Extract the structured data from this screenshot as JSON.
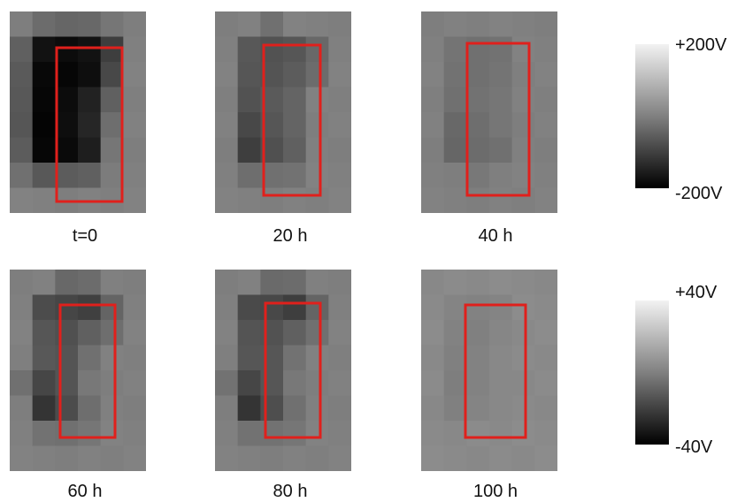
{
  "figure": {
    "time_labels": [
      "t=0",
      "20 h",
      "40 h",
      "60 h",
      "80 h",
      "100 h"
    ],
    "colorbars": [
      {
        "max_label": "+200V",
        "min_label": "-200V"
      },
      {
        "max_label": "+40V",
        "min_label": "-40V"
      }
    ],
    "colors": {
      "outline": "#e0201c",
      "background_gray": "#7e7e7e",
      "colorbar_top": "#f2f2f2",
      "colorbar_bottom": "#000000"
    }
  }
}
